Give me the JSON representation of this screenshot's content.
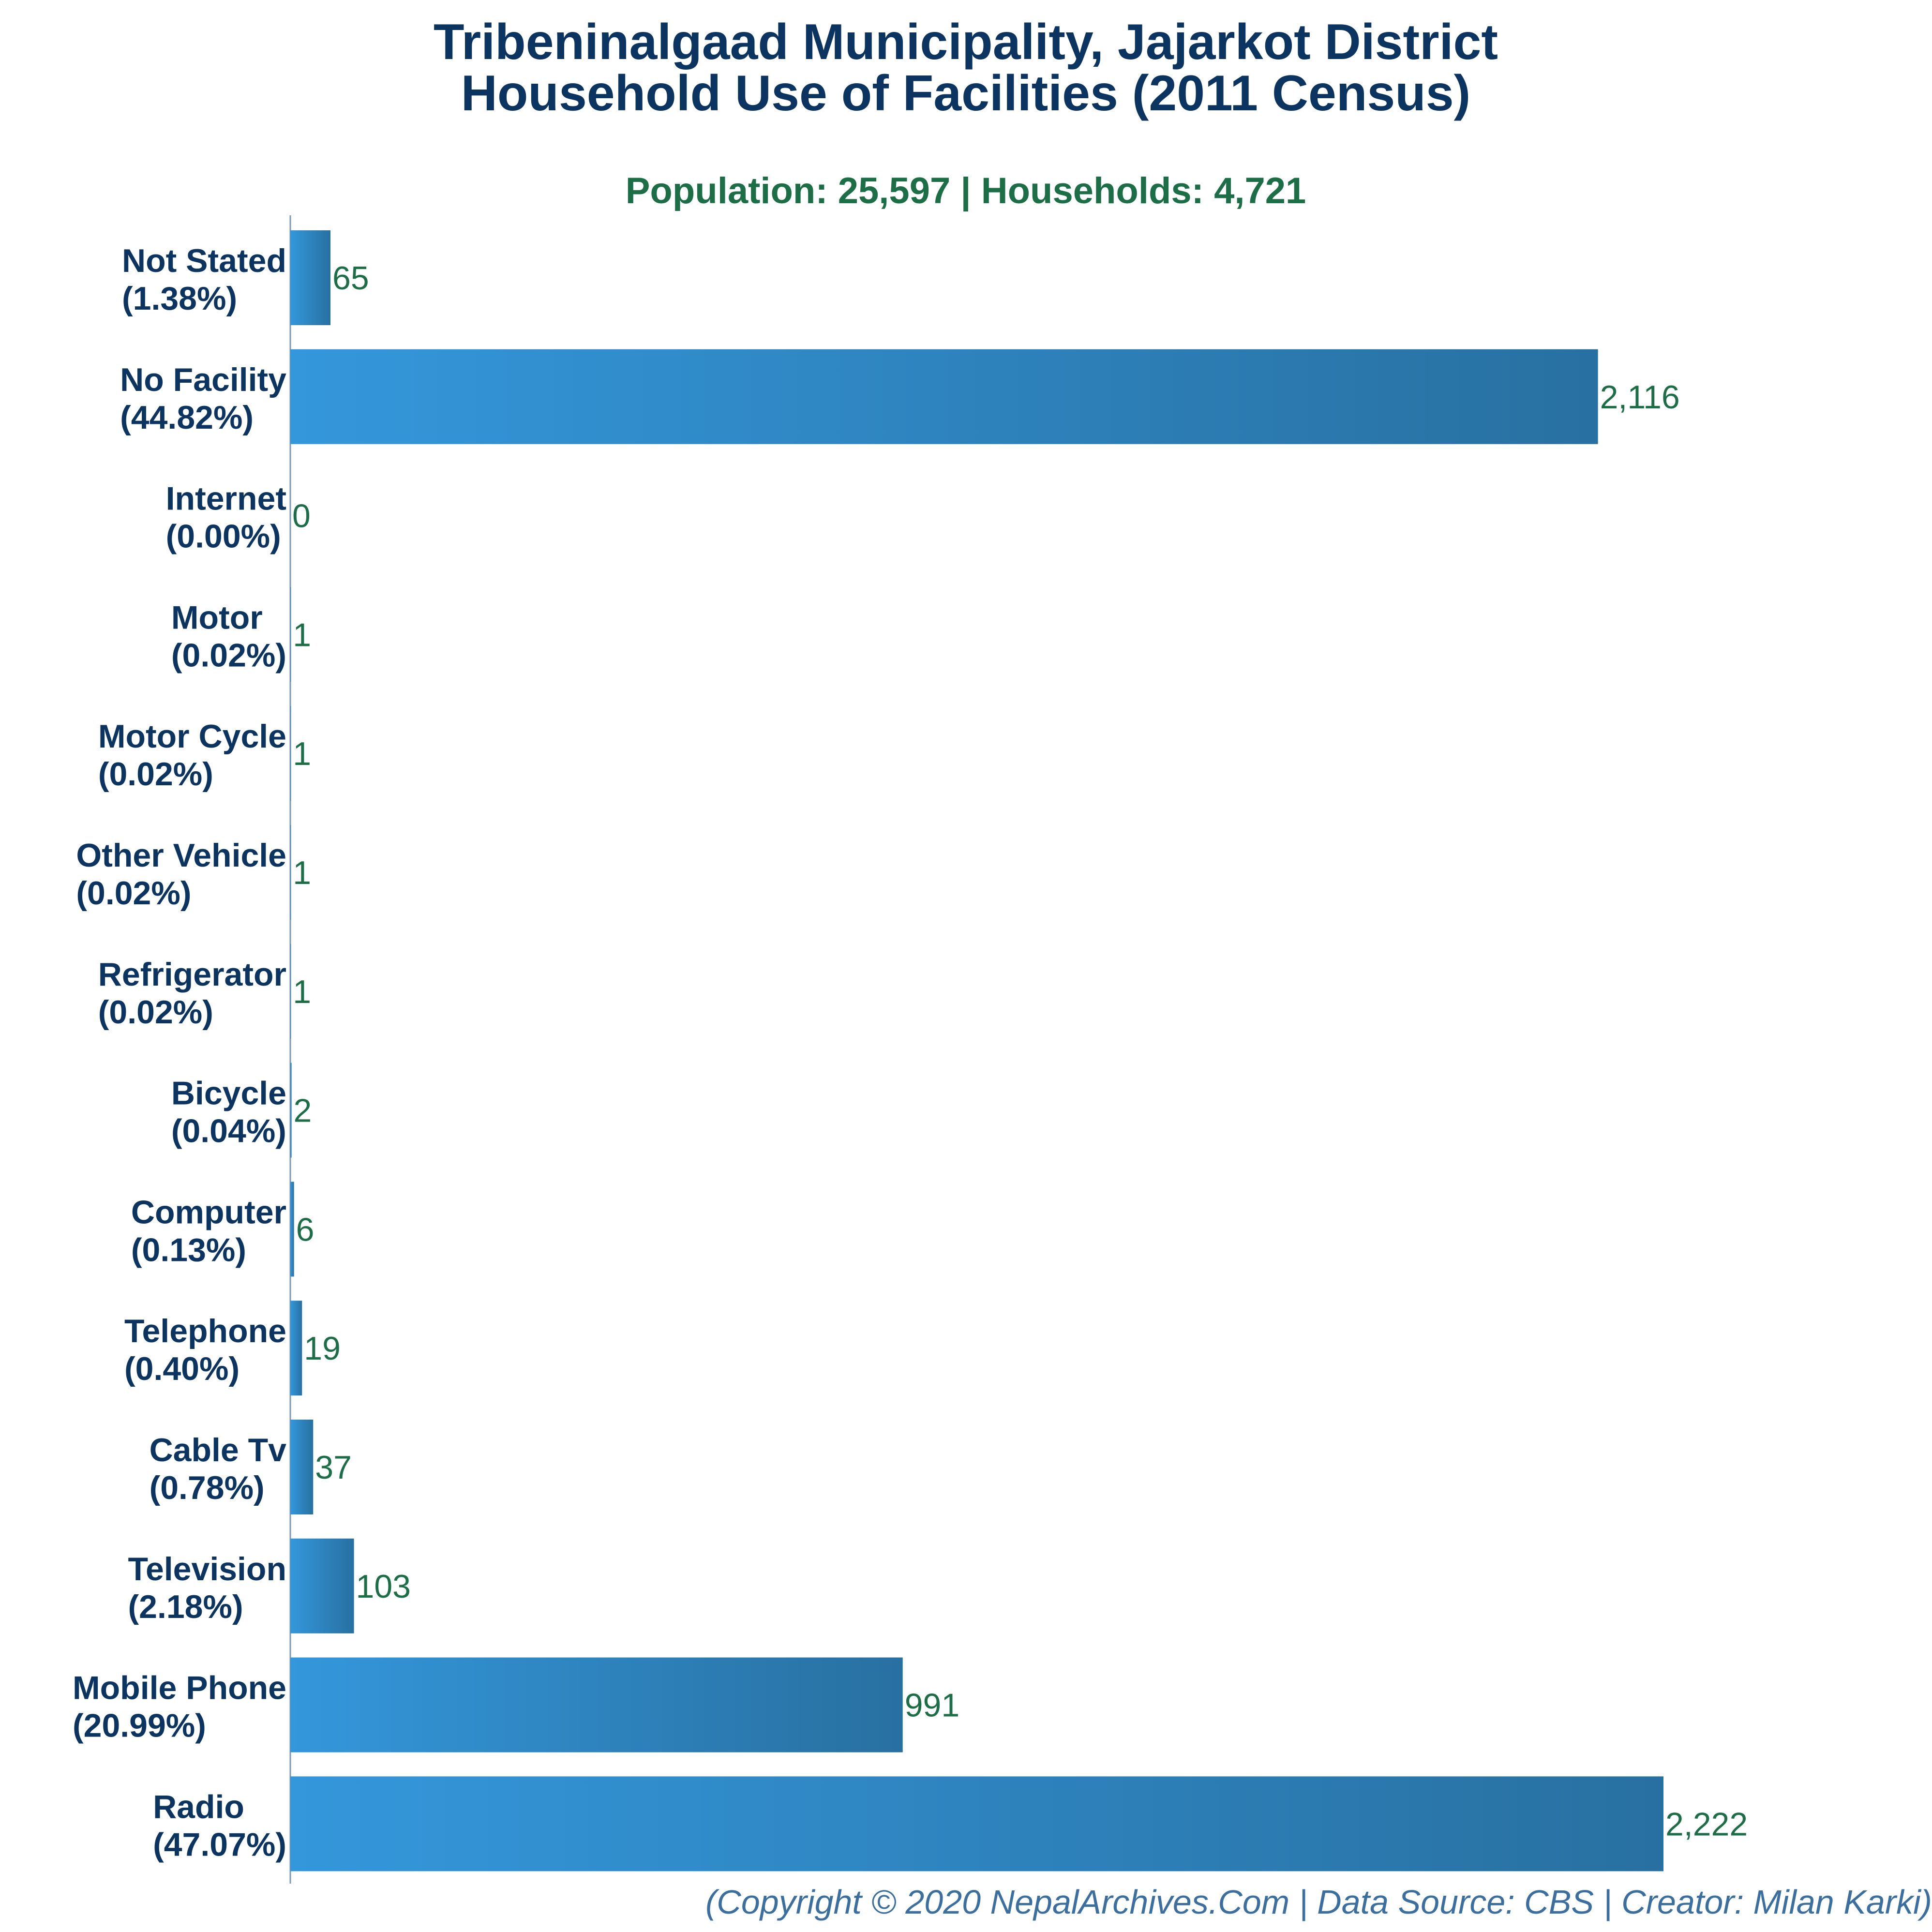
{
  "chart_data": {
    "type": "bar",
    "orientation": "horizontal",
    "title_lines": [
      "Tribeninalgaad Municipality, Jajarkot District",
      "Household Use of Facilities (2011 Census)"
    ],
    "subtitle": "Population: 25,597 | Households: 4,721",
    "categories": [
      "Not Stated",
      "No Facility",
      "Internet",
      "Motor",
      "Motor Cycle",
      "Other Vehicle",
      "Refrigerator",
      "Bicycle",
      "Computer",
      "Telephone",
      "Cable Tv",
      "Television",
      "Mobile Phone",
      "Radio"
    ],
    "percent_labels": [
      "(1.38%)",
      "(44.82%)",
      "(0.00%)",
      "(0.02%)",
      "(0.02%)",
      "(0.02%)",
      "(0.02%)",
      "(0.04%)",
      "(0.13%)",
      "(0.40%)",
      "(0.78%)",
      "(2.18%)",
      "(20.99%)",
      "(47.07%)"
    ],
    "values": [
      65,
      2116,
      0,
      1,
      1,
      1,
      1,
      2,
      6,
      19,
      37,
      103,
      991,
      2222
    ],
    "value_labels": [
      "65",
      "2,116",
      "0",
      "1",
      "1",
      "1",
      "1",
      "2",
      "6",
      "19",
      "37",
      "103",
      "991",
      "2,222"
    ],
    "xlim": [
      0,
      2222
    ],
    "grid": false,
    "bar_gradient": [
      "#3497db",
      "#2870a1"
    ],
    "footer": "(Copyright © 2020 NepalArchives.Com | Data Source: CBS | Creator: Milan Karki)"
  }
}
